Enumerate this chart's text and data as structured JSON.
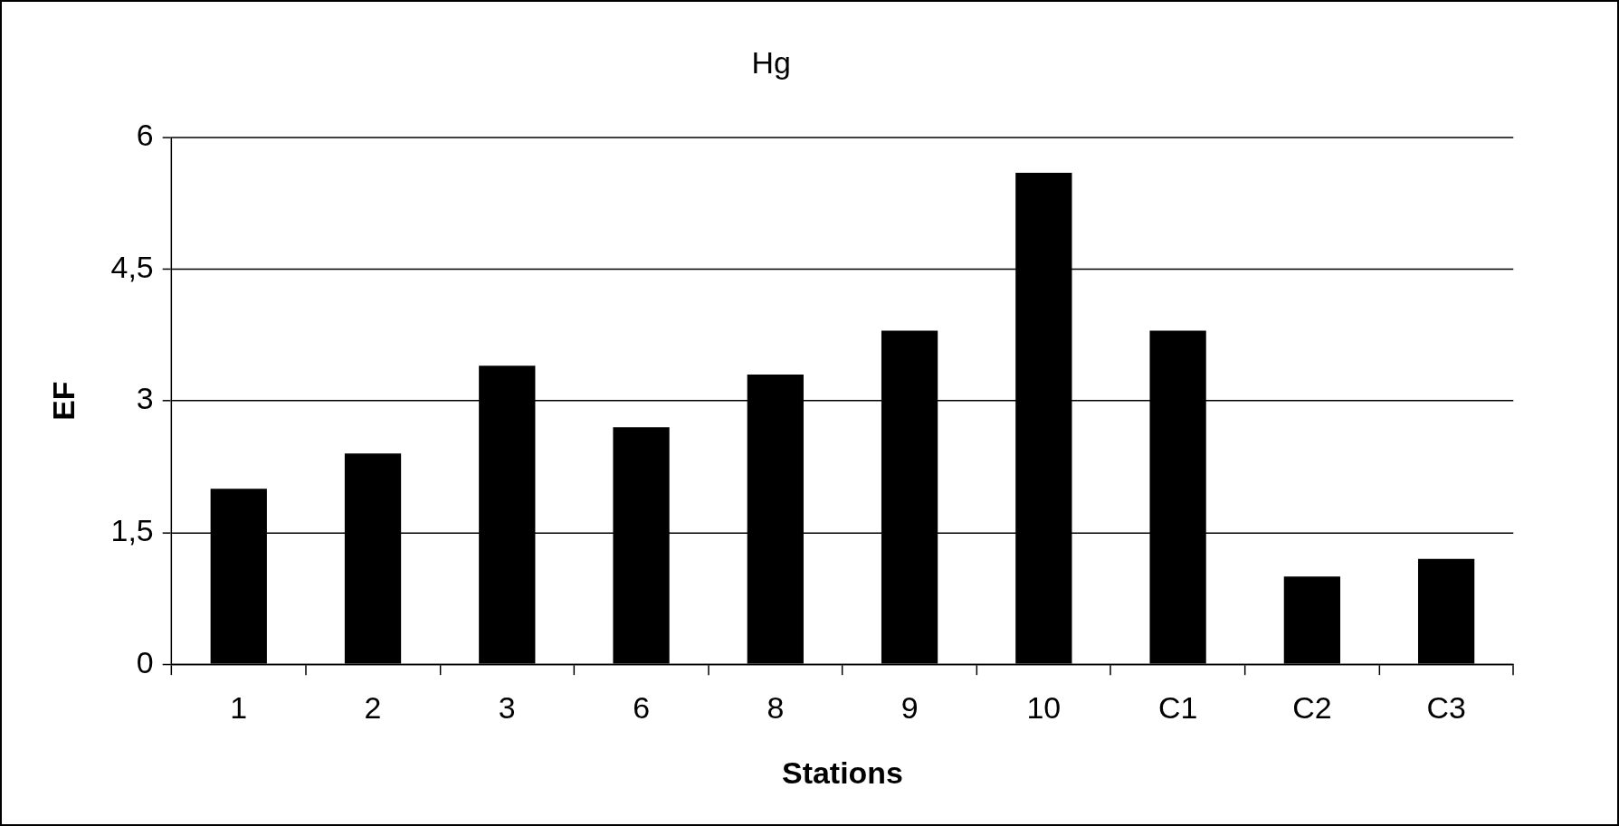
{
  "chart_data": {
    "type": "bar",
    "title": "Hg",
    "xlabel": "Stations",
    "ylabel": "EF",
    "categories": [
      "1",
      "2",
      "3",
      "6",
      "8",
      "9",
      "10",
      "C1",
      "C2",
      "C3"
    ],
    "values": [
      2.0,
      2.4,
      3.4,
      2.7,
      3.3,
      3.8,
      5.6,
      3.8,
      1.0,
      1.2
    ],
    "color": "#000000",
    "ylim": [
      0,
      6
    ],
    "yticks": [
      0,
      {
        "value": 1.5,
        "label": "1,5"
      },
      3,
      {
        "value": 4.5,
        "label": "4,5"
      },
      6
    ],
    "grid": "y",
    "legend": false
  }
}
